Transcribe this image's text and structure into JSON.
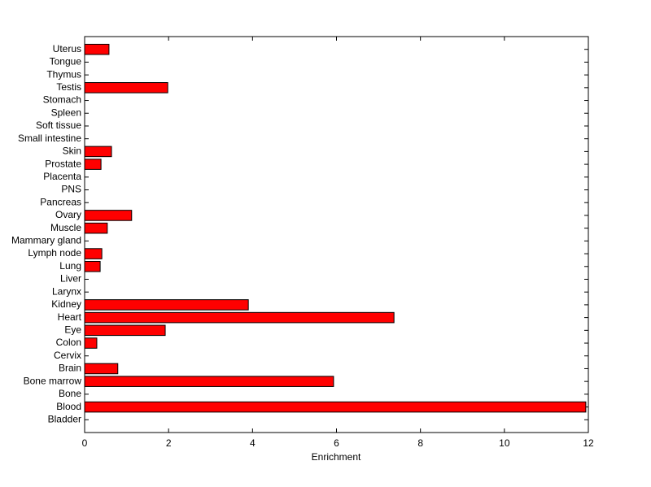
{
  "chart_data": {
    "type": "bar",
    "orientation": "horizontal",
    "x_label": "Enrichment",
    "categories": [
      "Bladder",
      "Blood",
      "Bone",
      "Bone marrow",
      "Brain",
      "Cervix",
      "Colon",
      "Eye",
      "Heart",
      "Kidney",
      "Larynx",
      "Liver",
      "Lung",
      "Lymph node",
      "Mammary gland",
      "Muscle",
      "Ovary",
      "Pancreas",
      "PNS",
      "Placenta",
      "Prostate",
      "Skin",
      "Small intestine",
      "Soft tissue",
      "Spleen",
      "Stomach",
      "Testis",
      "Thymus",
      "Tongue",
      "Uterus"
    ],
    "values": [
      0,
      11.94,
      0,
      5.93,
      0.79,
      0,
      0.29,
      1.92,
      7.37,
      3.9,
      0,
      0,
      0.37,
      0.41,
      0,
      0.54,
      1.12,
      0,
      0,
      0,
      0.39,
      0.64,
      0,
      0,
      0,
      0,
      1.98,
      0,
      0,
      0.58
    ],
    "color": "#ff0000",
    "xlim": [
      0,
      12
    ],
    "xticks": [
      0,
      2,
      4,
      6,
      8,
      10,
      12
    ],
    "grid": false
  }
}
